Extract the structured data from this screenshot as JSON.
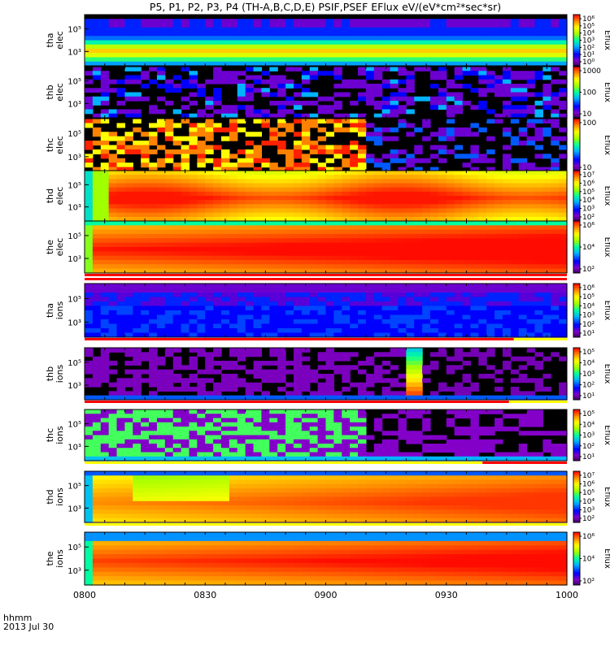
{
  "title": "P5, P1, P2, P3, P4 (TH-A,B,C,D,E) PSIF,PSEF EFlux eV/(eV*cm²*sec*sr)",
  "chart_data": {
    "type": "heatmap",
    "title": "P5, P1, P2, P3, P4 (TH-A,B,C,D,E) PSIF,PSEF EFlux eV/(eV*cm²*sec*sr)",
    "x_axis": {
      "ticks": [
        "0800",
        "0830",
        "0900",
        "0930",
        "1000"
      ],
      "tick_hours": [
        8.0,
        8.5,
        9.0,
        9.5,
        10.0
      ],
      "range": [
        8.0,
        10.0
      ],
      "label_line1": "hhmm",
      "label_line2": "2013 Jul 30"
    },
    "colorbar_label": "Eflux",
    "panels": [
      {
        "probe": "tha",
        "species": "elec",
        "y_ticks": [
          "10⁵",
          "10³"
        ],
        "cbar_ticks": [
          "10⁶",
          "10⁵",
          "10⁴",
          "10³",
          "10²",
          "10¹",
          "10⁰"
        ],
        "bands": [
          [
            8.0,
            10.0,
            "#ff00ff"
          ]
        ],
        "bands2": []
      },
      {
        "probe": "thb",
        "species": "elec",
        "y_ticks": [
          "10⁵",
          "10³"
        ],
        "cbar_ticks": [
          "1000",
          "100",
          "10"
        ],
        "bands": [
          [
            8.0,
            10.0,
            "#00ffff"
          ]
        ],
        "bands2": []
      },
      {
        "probe": "thc",
        "species": "elec",
        "y_ticks": [
          "10⁵",
          "10³"
        ],
        "cbar_ticks": [
          "100",
          "10"
        ],
        "bands": [],
        "bands2": []
      },
      {
        "probe": "thd",
        "species": "elec",
        "y_ticks": [
          "10⁵",
          "10³"
        ],
        "cbar_ticks": [
          "10⁷",
          "10⁶",
          "10⁵",
          "10⁴",
          "10³",
          "10²"
        ],
        "bands": [
          [
            8.0,
            8.08,
            "#0000ff"
          ],
          [
            8.08,
            8.35,
            "#000000"
          ],
          [
            8.35,
            8.6,
            "#0088ff"
          ],
          [
            8.6,
            9.2,
            "#0044ff"
          ],
          [
            9.2,
            10.0,
            "#0000aa"
          ]
        ],
        "bands2": []
      },
      {
        "probe": "the",
        "species": "elec",
        "y_ticks": [
          "10⁵",
          "10³"
        ],
        "cbar_ticks": [
          "10⁶",
          "10⁴",
          "10²"
        ],
        "bands": [
          [
            8.0,
            10.0,
            "#ff0000"
          ]
        ],
        "bands2": [
          [
            8.0,
            10.0,
            "#ff0000"
          ]
        ]
      },
      {
        "probe": "tha",
        "species": "ions",
        "y_ticks": [
          "10⁵",
          "10³"
        ],
        "cbar_ticks": [
          "10⁶",
          "10⁵",
          "10⁴",
          "10³",
          "10²",
          "10¹"
        ],
        "bands": [
          [
            8.0,
            9.78,
            "#ff0000"
          ],
          [
            9.78,
            10.0,
            "#ffff00"
          ]
        ],
        "bands2": []
      },
      {
        "probe": "thb",
        "species": "ions",
        "y_ticks": [
          "10⁵",
          "10³"
        ],
        "cbar_ticks": [
          "10⁵",
          "10⁴",
          "10³",
          "10²",
          "10¹"
        ],
        "bands": [
          [
            8.0,
            9.76,
            "#ff0000"
          ],
          [
            9.76,
            10.0,
            "#ffff00"
          ]
        ],
        "bands2": []
      },
      {
        "probe": "thc",
        "species": "ions",
        "y_ticks": [
          "10⁵",
          "10³"
        ],
        "cbar_ticks": [
          "10⁵",
          "10⁴",
          "10³",
          "10²",
          "10¹"
        ],
        "bands": [
          [
            8.0,
            9.65,
            "#ffff00"
          ],
          [
            9.65,
            10.0,
            "#ff0000"
          ]
        ],
        "bands2": []
      },
      {
        "probe": "thd",
        "species": "ions",
        "y_ticks": [
          "10⁵",
          "10³"
        ],
        "cbar_ticks": [
          "10⁷",
          "10⁶",
          "10⁵",
          "10⁴",
          "10³",
          "10²"
        ],
        "bands": [
          [
            8.0,
            10.0,
            "#ffff00"
          ]
        ],
        "bands2": []
      },
      {
        "probe": "the",
        "species": "ions",
        "y_ticks": [
          "10⁵",
          "10³"
        ],
        "cbar_ticks": [
          "10⁶",
          "10⁴",
          "10²"
        ],
        "bands": [],
        "bands2": []
      }
    ]
  }
}
